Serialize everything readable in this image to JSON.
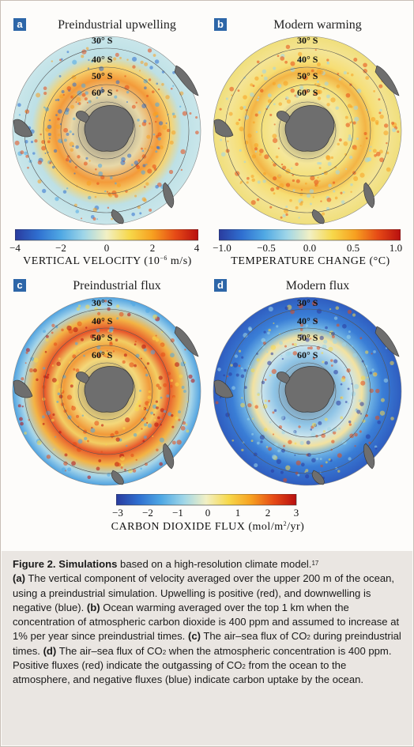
{
  "panels": [
    {
      "letter": "a",
      "title": "Preindustrial upwelling",
      "type": "upwelling"
    },
    {
      "letter": "b",
      "title": "Modern warming",
      "type": "warming"
    },
    {
      "letter": "c",
      "title": "Preindustrial flux",
      "type": "flux_pre"
    },
    {
      "letter": "d",
      "title": "Modern flux",
      "type": "flux_mod"
    }
  ],
  "latitudes": [
    "30° S",
    "40° S",
    "50° S",
    "60° S"
  ],
  "colorbars": [
    {
      "title_main": "VERTICAL VELOCITY (10",
      "title_sup": "−6",
      "title_end": " m/s)",
      "ticks": [
        "−4",
        "−2",
        "0",
        "2",
        "4"
      ],
      "range": [
        -4,
        4
      ]
    },
    {
      "title_main": "TEMPERATURE CHANGE (°C)",
      "title_sup": "",
      "title_end": "",
      "ticks": [
        "−1.0",
        "−0.5",
        "0.0",
        "0.5",
        "1.0"
      ],
      "range": [
        -1,
        1
      ]
    },
    {
      "title_main": "CARBON DIOXIDE FLUX (mol/m",
      "title_sup": "2",
      "title_end": "/yr)",
      "ticks": [
        "−3",
        "−2",
        "−1",
        "0",
        "1",
        "2",
        "3"
      ],
      "range": [
        -3,
        3
      ]
    }
  ],
  "caption": {
    "title_bold": "Figure 2. Simulations",
    "title_rest": " based on a high-resolution climate model.",
    "ref": "17",
    "a_label": "(a)",
    "a_text": " The vertical component of velocity averaged over the upper 200 m of the ocean, using a preindustrial simulation. Upwelling is positive (red), and downwelling is negative (blue). ",
    "b_label": "(b)",
    "b_text": " Ocean warming averaged over the top 1 km when the concentration of atmospheric carbon dioxide is 400 ppm and assumed to increase at 1% per year since preindustrial times. ",
    "c_label": "(c)",
    "c_text1": " The air–sea flux of CO",
    "c_sub": "2",
    "c_text2": " during preindustrial times. ",
    "d_label": "(d)",
    "d_text1": " The air–sea flux of CO",
    "d_sub1": "2",
    "d_text2": " when the atmospheric concentration is 400 ppm. Positive fluxes (red) indicate the outgassing of CO",
    "d_sub2": "2",
    "d_text3": " from the ocean to the atmosphere, and negative fluxes (blue) indicate carbon uptake by the ocean."
  },
  "colors": {
    "letter_bg": "#2d66a8",
    "caption_bg": "#eae6e2",
    "land": "#6e6e6e",
    "diverging": [
      "#2a3b9e",
      "#2f6fd0",
      "#4fa8e4",
      "#9fd6e8",
      "#f2f0c4",
      "#f7d84a",
      "#f7a020",
      "#e64a16",
      "#b80f0f"
    ]
  }
}
